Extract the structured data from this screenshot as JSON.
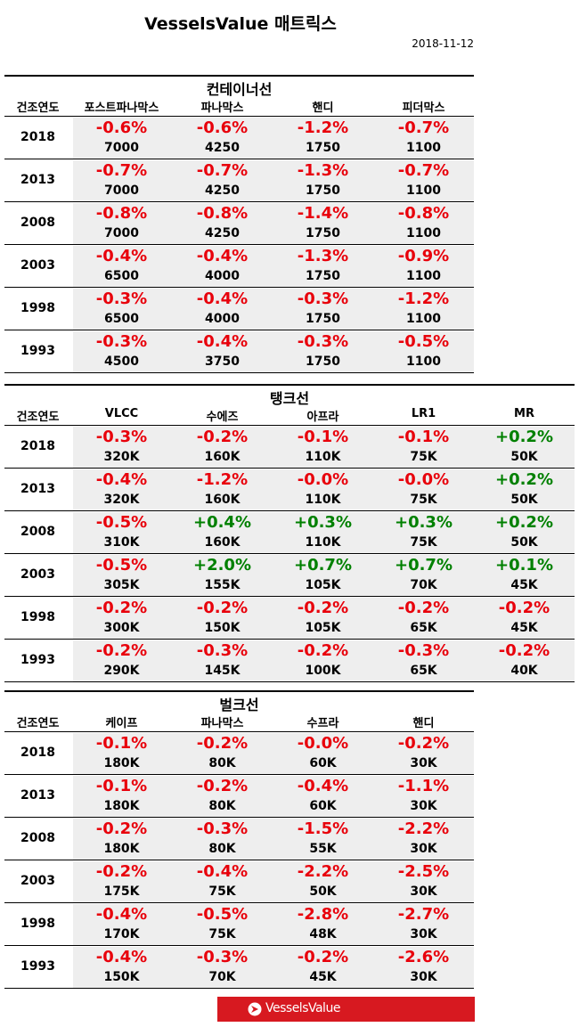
{
  "header": {
    "title": "VesselsValue 매트릭스",
    "date": "2018-11-12"
  },
  "sections": [
    {
      "title": "컨테이너선",
      "headers": [
        "건조연도",
        "포스트파나막스",
        "파나막스",
        "핸디",
        "피더막스"
      ],
      "rows": [
        {
          "year": "2018",
          "cells": [
            {
              "change": "-0.6%",
              "value": "7000"
            },
            {
              "change": "-0.6%",
              "value": "4250"
            },
            {
              "change": "-1.2%",
              "value": "1750"
            },
            {
              "change": "-0.7%",
              "value": "1100"
            }
          ]
        },
        {
          "year": "2013",
          "cells": [
            {
              "change": "-0.7%",
              "value": "7000"
            },
            {
              "change": "-0.7%",
              "value": "4250"
            },
            {
              "change": "-1.3%",
              "value": "1750"
            },
            {
              "change": "-0.7%",
              "value": "1100"
            }
          ]
        },
        {
          "year": "2008",
          "cells": [
            {
              "change": "-0.8%",
              "value": "7000"
            },
            {
              "change": "-0.8%",
              "value": "4250"
            },
            {
              "change": "-1.4%",
              "value": "1750"
            },
            {
              "change": "-0.8%",
              "value": "1100"
            }
          ]
        },
        {
          "year": "2003",
          "cells": [
            {
              "change": "-0.4%",
              "value": "6500"
            },
            {
              "change": "-0.4%",
              "value": "4000"
            },
            {
              "change": "-1.3%",
              "value": "1750"
            },
            {
              "change": "-0.9%",
              "value": "1100"
            }
          ]
        },
        {
          "year": "1998",
          "cells": [
            {
              "change": "-0.3%",
              "value": "6500"
            },
            {
              "change": "-0.4%",
              "value": "4000"
            },
            {
              "change": "-0.3%",
              "value": "1750"
            },
            {
              "change": "-1.2%",
              "value": "1100"
            }
          ]
        },
        {
          "year": "1993",
          "cells": [
            {
              "change": "-0.3%",
              "value": "4500"
            },
            {
              "change": "-0.4%",
              "value": "3750"
            },
            {
              "change": "-0.3%",
              "value": "1750"
            },
            {
              "change": "-0.5%",
              "value": "1100"
            }
          ]
        }
      ]
    },
    {
      "title": "탱크선",
      "headers": [
        "건조연도",
        "VLCC",
        "수에즈",
        "아프라",
        "LR1",
        "MR"
      ],
      "rows": [
        {
          "year": "2018",
          "cells": [
            {
              "change": "-0.3%",
              "value": "320K"
            },
            {
              "change": "-0.2%",
              "value": "160K"
            },
            {
              "change": "-0.1%",
              "value": "110K"
            },
            {
              "change": "-0.1%",
              "value": "75K"
            },
            {
              "change": "+0.2%",
              "value": "50K"
            }
          ]
        },
        {
          "year": "2013",
          "cells": [
            {
              "change": "-0.4%",
              "value": "320K"
            },
            {
              "change": "-1.2%",
              "value": "160K"
            },
            {
              "change": "-0.0%",
              "value": "110K"
            },
            {
              "change": "-0.0%",
              "value": "75K"
            },
            {
              "change": "+0.2%",
              "value": "50K"
            }
          ]
        },
        {
          "year": "2008",
          "cells": [
            {
              "change": "-0.5%",
              "value": "310K"
            },
            {
              "change": "+0.4%",
              "value": "160K"
            },
            {
              "change": "+0.3%",
              "value": "110K"
            },
            {
              "change": "+0.3%",
              "value": "75K"
            },
            {
              "change": "+0.2%",
              "value": "50K"
            }
          ]
        },
        {
          "year": "2003",
          "cells": [
            {
              "change": "-0.5%",
              "value": "305K"
            },
            {
              "change": "+2.0%",
              "value": "155K"
            },
            {
              "change": "+0.7%",
              "value": "105K"
            },
            {
              "change": "+0.7%",
              "value": "70K"
            },
            {
              "change": "+0.1%",
              "value": "45K"
            }
          ]
        },
        {
          "year": "1998",
          "cells": [
            {
              "change": "-0.2%",
              "value": "300K"
            },
            {
              "change": "-0.2%",
              "value": "150K"
            },
            {
              "change": "-0.2%",
              "value": "105K"
            },
            {
              "change": "-0.2%",
              "value": "65K"
            },
            {
              "change": "-0.2%",
              "value": "45K"
            }
          ]
        },
        {
          "year": "1993",
          "cells": [
            {
              "change": "-0.2%",
              "value": "290K"
            },
            {
              "change": "-0.3%",
              "value": "145K"
            },
            {
              "change": "-0.2%",
              "value": "100K"
            },
            {
              "change": "-0.3%",
              "value": "65K"
            },
            {
              "change": "-0.2%",
              "value": "40K"
            }
          ]
        }
      ]
    },
    {
      "title": "벌크선",
      "headers": [
        "건조연도",
        "케이프",
        "파나막스",
        "수프라",
        "핸디"
      ],
      "rows": [
        {
          "year": "2018",
          "cells": [
            {
              "change": "-0.1%",
              "value": "180K"
            },
            {
              "change": "-0.2%",
              "value": "80K"
            },
            {
              "change": "-0.0%",
              "value": "60K"
            },
            {
              "change": "-0.2%",
              "value": "30K"
            }
          ]
        },
        {
          "year": "2013",
          "cells": [
            {
              "change": "-0.1%",
              "value": "180K"
            },
            {
              "change": "-0.2%",
              "value": "80K"
            },
            {
              "change": "-0.4%",
              "value": "60K"
            },
            {
              "change": "-1.1%",
              "value": "30K"
            }
          ]
        },
        {
          "year": "2008",
          "cells": [
            {
              "change": "-0.2%",
              "value": "180K"
            },
            {
              "change": "-0.3%",
              "value": "80K"
            },
            {
              "change": "-1.5%",
              "value": "55K"
            },
            {
              "change": "-2.2%",
              "value": "30K"
            }
          ]
        },
        {
          "year": "2003",
          "cells": [
            {
              "change": "-0.2%",
              "value": "175K"
            },
            {
              "change": "-0.4%",
              "value": "75K"
            },
            {
              "change": "-2.2%",
              "value": "50K"
            },
            {
              "change": "-2.5%",
              "value": "30K"
            }
          ]
        },
        {
          "year": "1998",
          "cells": [
            {
              "change": "-0.4%",
              "value": "170K"
            },
            {
              "change": "-0.5%",
              "value": "75K"
            },
            {
              "change": "-2.8%",
              "value": "48K"
            },
            {
              "change": "-2.7%",
              "value": "30K"
            }
          ]
        },
        {
          "year": "1993",
          "cells": [
            {
              "change": "-0.4%",
              "value": "150K"
            },
            {
              "change": "-0.3%",
              "value": "70K"
            },
            {
              "change": "-0.2%",
              "value": "45K"
            },
            {
              "change": "-2.6%",
              "value": "30K"
            }
          ]
        }
      ]
    }
  ],
  "footer": {
    "logo": "VesselsValue"
  }
}
